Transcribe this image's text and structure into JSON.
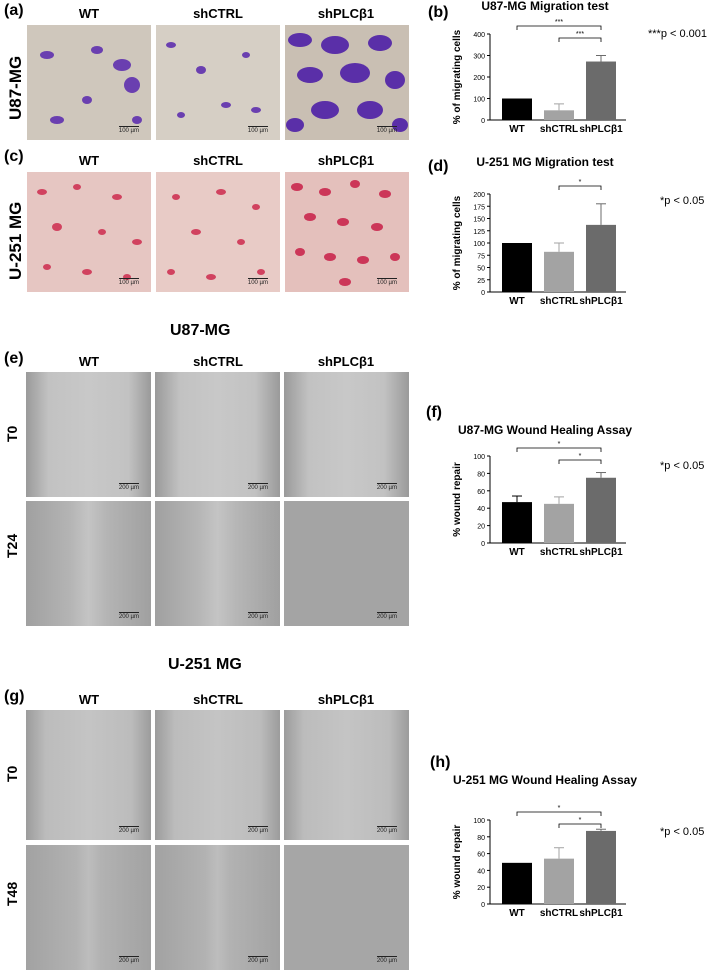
{
  "panels": {
    "a": {
      "label": "(a)",
      "columns": [
        "WT",
        "shCTRL",
        "shPLCβ1"
      ],
      "row": "U87-MG",
      "scale": "100 µm"
    },
    "c": {
      "label": "(c)",
      "columns": [
        "WT",
        "shCTRL",
        "shPLCβ1"
      ],
      "row": "U-251 MG",
      "scale": "100 µm"
    },
    "e": {
      "label": "(e)",
      "section_title": "U87-MG",
      "columns": [
        "WT",
        "shCTRL",
        "shPLCβ1"
      ],
      "rows": [
        "T0",
        "T24"
      ],
      "scale": "200 µm"
    },
    "g": {
      "label": "(g)",
      "section_title": "U-251 MG",
      "columns": [
        "WT",
        "shCTRL",
        "shPLCβ1"
      ],
      "rows": [
        "T0",
        "T48"
      ],
      "scale": "200 µm"
    }
  },
  "pvalues": {
    "b": "***p < 0.001",
    "d": "*p < 0.05",
    "f": "*p < 0.05",
    "h": "*p < 0.05"
  },
  "chart_data": [
    {
      "id": "b",
      "panel_label": "(b)",
      "type": "bar",
      "title": "U87-MG Migration test",
      "ylabel": "% of migrating cells",
      "categories": [
        "WT",
        "shCTRL",
        "shPLCβ1"
      ],
      "values": [
        100,
        45,
        272
      ],
      "errors": [
        0,
        30,
        28
      ],
      "colors": [
        "#000000",
        "#a3a3a3",
        "#6b6b6b"
      ],
      "ylim": [
        0,
        400
      ],
      "yticks": [
        0,
        100,
        200,
        300,
        400
      ],
      "significance": [
        {
          "from": 0,
          "to": 2,
          "label": "***"
        },
        {
          "from": 1,
          "to": 2,
          "label": "***"
        }
      ]
    },
    {
      "id": "d",
      "panel_label": "(d)",
      "type": "bar",
      "title": "U-251 MG Migration test",
      "ylabel": "% of migrating cells",
      "categories": [
        "WT",
        "shCTRL",
        "shPLCβ1"
      ],
      "values": [
        100,
        82,
        137
      ],
      "errors": [
        0,
        18,
        43
      ],
      "colors": [
        "#000000",
        "#a3a3a3",
        "#6b6b6b"
      ],
      "ylim": [
        0,
        200
      ],
      "yticks": [
        0,
        25,
        50,
        75,
        100,
        125,
        150,
        175,
        200
      ],
      "significance": [
        {
          "from": 1,
          "to": 2,
          "label": "*"
        }
      ]
    },
    {
      "id": "f",
      "panel_label": "(f)",
      "type": "bar",
      "title": "U87-MG Wound Healing Assay",
      "ylabel": "% wound repair",
      "categories": [
        "WT",
        "shCTRL",
        "shPLCβ1"
      ],
      "values": [
        47,
        45,
        75
      ],
      "errors": [
        7,
        8,
        6
      ],
      "colors": [
        "#000000",
        "#a3a3a3",
        "#6b6b6b"
      ],
      "ylim": [
        0,
        100
      ],
      "yticks": [
        0,
        20,
        40,
        60,
        80,
        100
      ],
      "significance": [
        {
          "from": 0,
          "to": 2,
          "label": "*"
        },
        {
          "from": 1,
          "to": 2,
          "label": "*"
        }
      ]
    },
    {
      "id": "h",
      "panel_label": "(h)",
      "type": "bar",
      "title": "U-251 MG Wound Healing Assay",
      "ylabel": "% wound repair",
      "categories": [
        "WT",
        "shCTRL",
        "shPLCβ1"
      ],
      "values": [
        49,
        54,
        87
      ],
      "errors": [
        0,
        13,
        2
      ],
      "colors": [
        "#000000",
        "#a3a3a3",
        "#6b6b6b"
      ],
      "ylim": [
        0,
        100
      ],
      "yticks": [
        0,
        20,
        40,
        60,
        80,
        100
      ],
      "significance": [
        {
          "from": 0,
          "to": 2,
          "label": "*"
        },
        {
          "from": 1,
          "to": 2,
          "label": "*"
        }
      ]
    }
  ]
}
